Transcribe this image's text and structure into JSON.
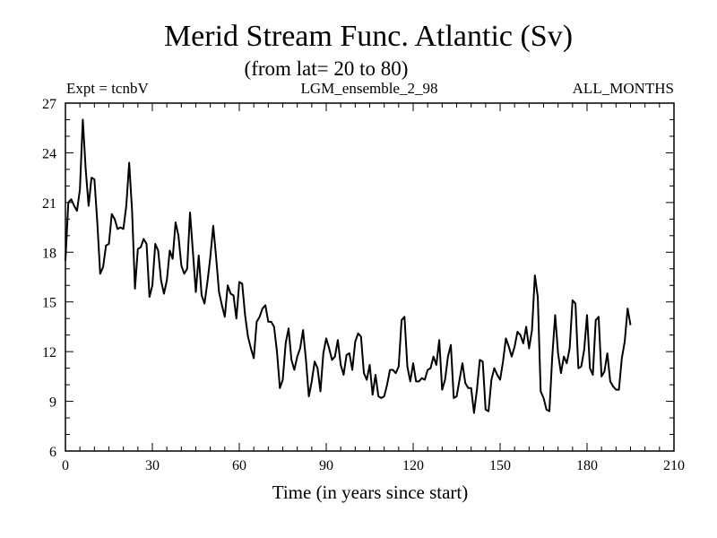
{
  "chart_data": {
    "type": "line",
    "title": "Merid Stream Func. Atlantic (Sv)",
    "subtitle": "(from lat= 20 to 80)",
    "header_left": "Expt = tcnbV",
    "header_center": "LGM_ensemble_2_98",
    "header_right": "ALL_MONTHS",
    "xlabel": "Time (in years since start)",
    "ylabel": "",
    "xlim": [
      0,
      210
    ],
    "ylim": [
      6,
      27
    ],
    "xticks": [
      0,
      30,
      60,
      90,
      120,
      150,
      180,
      210
    ],
    "yticks": [
      6,
      9,
      12,
      15,
      18,
      21,
      24,
      27
    ],
    "x_minor_step": 5,
    "y_minor_step": 1,
    "grid": false,
    "series": [
      {
        "name": "Merid Stream Func. Atlantic",
        "color": "#000000",
        "x_start": 0,
        "x_step": 1,
        "values": [
          17.5,
          21.0,
          21.2,
          20.8,
          20.5,
          21.8,
          26.0,
          23.0,
          20.8,
          22.5,
          22.4,
          19.8,
          16.7,
          17.1,
          18.4,
          18.5,
          20.3,
          20.0,
          19.4,
          19.5,
          19.4,
          20.8,
          23.4,
          20.5,
          15.8,
          18.2,
          18.3,
          18.8,
          18.5,
          15.3,
          16.0,
          18.5,
          18.1,
          16.3,
          15.5,
          16.3,
          18.1,
          17.6,
          19.8,
          19.0,
          17.2,
          16.7,
          17.0,
          20.4,
          18.0,
          15.6,
          17.8,
          15.4,
          14.9,
          16.2,
          17.7,
          19.6,
          17.7,
          15.6,
          14.8,
          14.1,
          16.0,
          15.5,
          15.4,
          14.0,
          16.2,
          16.1,
          14.2,
          12.9,
          12.2,
          11.6,
          13.8,
          14.1,
          14.6,
          14.8,
          13.8,
          13.8,
          13.5,
          12.0,
          9.8,
          10.3,
          12.5,
          13.4,
          11.5,
          10.9,
          11.7,
          12.2,
          13.3,
          11.5,
          9.3,
          10.2,
          11.4,
          11.0,
          9.6,
          11.9,
          12.8,
          12.2,
          11.5,
          11.7,
          12.7,
          11.2,
          10.6,
          11.8,
          11.9,
          10.9,
          12.6,
          13.1,
          12.9,
          10.7,
          10.3,
          11.2,
          9.4,
          10.6,
          9.3,
          9.2,
          9.3,
          10.0,
          10.9,
          10.9,
          10.7,
          11.1,
          13.9,
          14.1,
          11.1,
          10.2,
          11.3,
          10.2,
          10.2,
          10.4,
          10.3,
          10.9,
          11.0,
          11.7,
          11.2,
          12.7,
          9.7,
          10.3,
          11.7,
          12.4,
          9.2,
          9.3,
          10.3,
          11.3,
          10.1,
          9.8,
          9.8,
          8.3,
          9.7,
          11.5,
          11.4,
          8.5,
          8.4,
          10.3,
          11.0,
          10.6,
          10.3,
          11.4,
          12.8,
          12.3,
          11.7,
          12.3,
          13.2,
          13.0,
          12.5,
          13.5,
          12.2,
          13.3,
          16.6,
          15.3,
          9.6,
          9.2,
          8.5,
          8.4,
          11.7,
          14.2,
          11.9,
          10.7,
          11.7,
          11.3,
          12.2,
          15.1,
          14.9,
          11.0,
          11.1,
          12.1,
          14.2,
          11.0,
          10.6,
          13.9,
          14.1,
          10.5,
          10.8,
          11.9,
          10.2,
          9.9,
          9.7,
          9.7,
          11.6,
          12.6,
          14.6,
          13.6
        ]
      }
    ]
  }
}
